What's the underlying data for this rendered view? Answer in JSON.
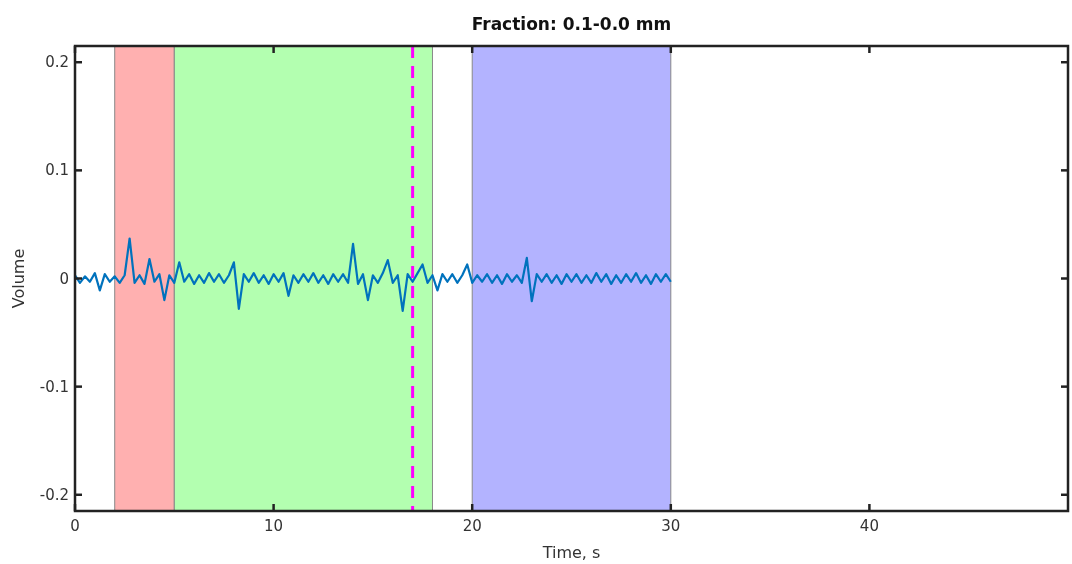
{
  "chart_data": {
    "type": "line",
    "title": "Fraction: 0.1-0.0 mm",
    "xlabel": "Time, s",
    "ylabel": "Volume",
    "xlim": [
      0,
      50
    ],
    "xticks": [
      0,
      10,
      20,
      30,
      40
    ],
    "ylim": [
      -0.215,
      0.215
    ],
    "yticks": [
      -0.2,
      -0.1,
      0,
      0.1,
      0.2
    ],
    "grid": false,
    "line_style": "solid",
    "marker": "none",
    "bands": [
      {
        "axis": "x",
        "from": 2,
        "to": 5,
        "color": "#ffb0b0"
      },
      {
        "axis": "x",
        "from": 5,
        "to": 18,
        "color": "#b3ffb0"
      },
      {
        "axis": "x",
        "from": 20,
        "to": 30,
        "color": "#b3b3ff"
      }
    ],
    "ref_lines": [
      {
        "axis": "x",
        "value": 17,
        "color": "#ff00ff",
        "line_style": "dashed"
      }
    ],
    "series": [
      {
        "color": "#0072bd",
        "x": [
          0,
          0.25,
          0.5,
          0.75,
          1,
          1.25,
          1.5,
          1.75,
          2,
          2.25,
          2.5,
          2.75,
          3,
          3.25,
          3.5,
          3.75,
          4,
          4.25,
          4.5,
          4.75,
          5,
          5.25,
          5.5,
          5.75,
          6,
          6.25,
          6.5,
          6.75,
          7,
          7.25,
          7.5,
          7.75,
          8,
          8.25,
          8.5,
          8.75,
          9,
          9.25,
          9.5,
          9.75,
          10,
          10.25,
          10.5,
          10.75,
          11,
          11.25,
          11.5,
          11.75,
          12,
          12.25,
          12.5,
          12.75,
          13,
          13.25,
          13.5,
          13.75,
          14,
          14.25,
          14.5,
          14.75,
          15,
          15.25,
          15.5,
          15.75,
          16,
          16.25,
          16.5,
          16.75,
          17,
          17.25,
          17.5,
          17.75,
          18,
          18.25,
          18.5,
          18.75,
          19,
          19.25,
          19.5,
          19.75,
          20,
          20.25,
          20.5,
          20.75,
          21,
          21.25,
          21.5,
          21.75,
          22,
          22.25,
          22.5,
          22.75,
          23,
          23.25,
          23.5,
          23.75,
          24,
          24.25,
          24.5,
          24.75,
          25,
          25.25,
          25.5,
          25.75,
          26,
          26.25,
          26.5,
          26.75,
          27,
          27.25,
          27.5,
          27.75,
          28,
          28.25,
          28.5,
          28.75,
          29,
          29.25,
          29.5,
          29.75,
          30
        ],
        "values": [
          0.003,
          -0.004,
          0.002,
          -0.003,
          0.005,
          -0.011,
          0.004,
          -0.003,
          0.002,
          -0.004,
          0.003,
          0.037,
          -0.004,
          0.003,
          -0.005,
          0.018,
          -0.003,
          0.004,
          -0.02,
          0.003,
          -0.004,
          0.015,
          -0.003,
          0.004,
          -0.005,
          0.003,
          -0.004,
          0.005,
          -0.003,
          0.004,
          -0.004,
          0.003,
          0.015,
          -0.028,
          0.004,
          -0.003,
          0.005,
          -0.004,
          0.003,
          -0.005,
          0.004,
          -0.003,
          0.005,
          -0.016,
          0.003,
          -0.004,
          0.004,
          -0.003,
          0.005,
          -0.004,
          0.003,
          -0.005,
          0.004,
          -0.003,
          0.004,
          -0.004,
          0.032,
          -0.005,
          0.004,
          -0.02,
          0.003,
          -0.004,
          0.005,
          0.017,
          -0.004,
          0.003,
          -0.03,
          0.004,
          -0.003,
          0.005,
          0.013,
          -0.004,
          0.003,
          -0.011,
          0.004,
          -0.003,
          0.004,
          -0.004,
          0.003,
          0.013,
          -0.004,
          0.003,
          -0.003,
          0.004,
          -0.004,
          0.003,
          -0.005,
          0.004,
          -0.003,
          0.003,
          -0.004,
          0.019,
          -0.021,
          0.004,
          -0.003,
          0.004,
          -0.004,
          0.003,
          -0.005,
          0.004,
          -0.003,
          0.004,
          -0.004,
          0.003,
          -0.004,
          0.005,
          -0.003,
          0.004,
          -0.005,
          0.003,
          -0.004,
          0.004,
          -0.003,
          0.005,
          -0.004,
          0.003,
          -0.005,
          0.004,
          -0.003,
          0.004,
          -0.003
        ]
      }
    ]
  }
}
